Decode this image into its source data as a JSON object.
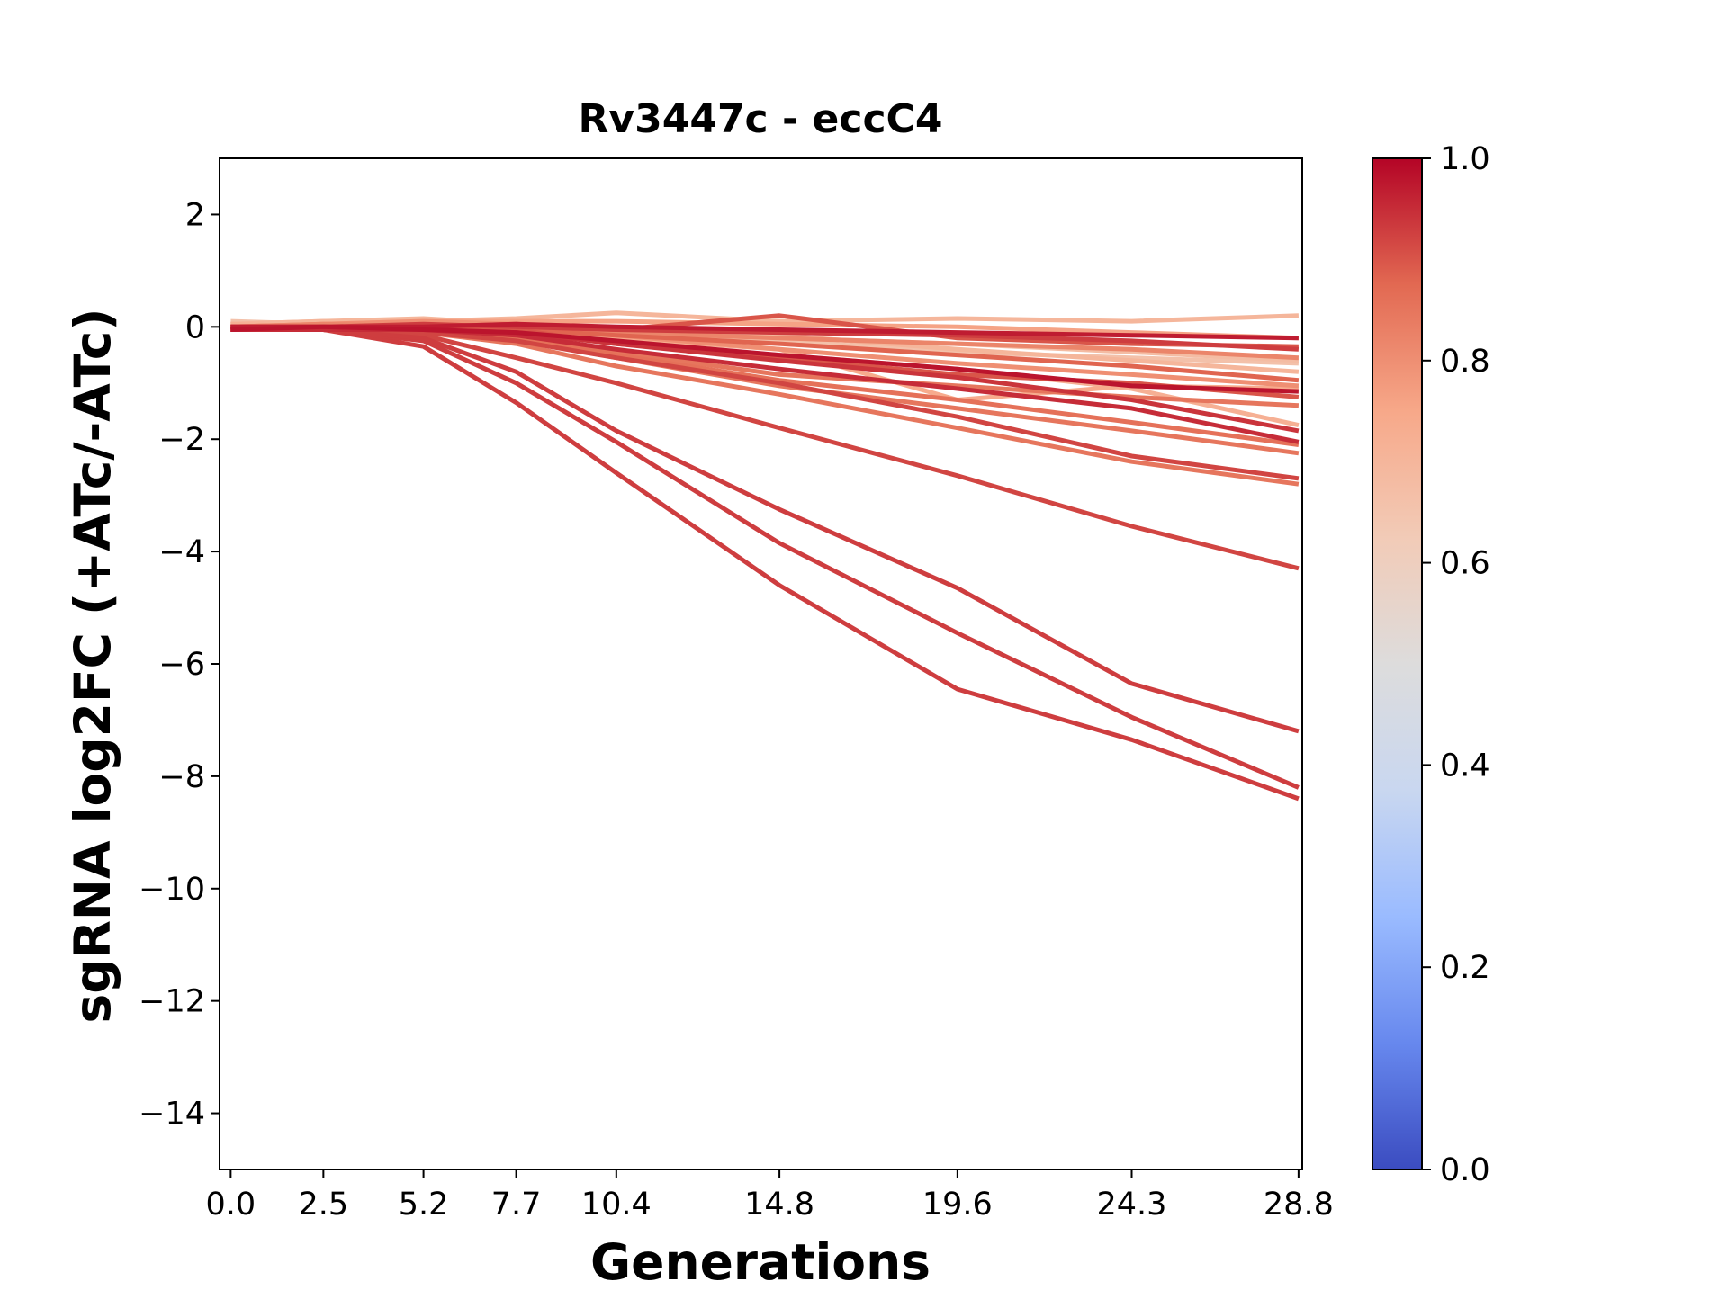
{
  "chart_data": {
    "type": "line",
    "title": "Rv3447c - eccC4",
    "xlabel": "Generations",
    "ylabel": "sgRNA log2FC (+ATc/-ATc)",
    "x": [
      0.0,
      2.5,
      5.2,
      7.7,
      10.4,
      14.8,
      19.6,
      24.3,
      28.8
    ],
    "x_tick_labels": [
      "0.0",
      "2.5",
      "5.2",
      "7.7",
      "10.4",
      "14.8",
      "19.6",
      "24.3",
      "28.8"
    ],
    "xlim": [
      -0.3,
      28.9
    ],
    "ylim": [
      -15,
      3
    ],
    "y_ticks": [
      2,
      0,
      -2,
      -4,
      -6,
      -8,
      -10,
      -12,
      -14
    ],
    "y_tick_labels": [
      "2",
      "0",
      "−2",
      "−4",
      "−6",
      "−8",
      "−10",
      "−12",
      "−14"
    ],
    "grid": false,
    "legend": "none",
    "colorbar": {
      "colormap": "coolwarm",
      "range": [
        0.0,
        1.0
      ],
      "ticks": [
        0.0,
        0.2,
        0.4,
        0.6,
        0.8,
        1.0
      ],
      "tick_labels": [
        "0.0",
        "0.2",
        "0.4",
        "0.6",
        "0.8",
        "1.0"
      ],
      "stops": [
        "#3b4cc0",
        "#6788ee",
        "#9abbff",
        "#c9d7f0",
        "#dddcdc",
        "#f2cbb7",
        "#f7a889",
        "#e26952",
        "#b40426"
      ]
    },
    "series": [
      {
        "c": 0.93,
        "values": [
          -0.05,
          -0.05,
          -0.35,
          -1.35,
          -2.6,
          -4.6,
          -6.45,
          -7.35,
          -8.4
        ]
      },
      {
        "c": 0.93,
        "values": [
          -0.05,
          -0.05,
          -0.25,
          -1.0,
          -2.05,
          -3.85,
          -5.45,
          -6.95,
          -8.2
        ]
      },
      {
        "c": 0.93,
        "values": [
          -0.05,
          -0.05,
          -0.2,
          -0.8,
          -1.85,
          -3.25,
          -4.65,
          -6.35,
          -7.2
        ]
      },
      {
        "c": 0.92,
        "values": [
          -0.05,
          -0.05,
          -0.15,
          -0.55,
          -1.0,
          -1.8,
          -2.65,
          -3.55,
          -4.3
        ]
      },
      {
        "c": 0.85,
        "values": [
          -0.05,
          0.0,
          -0.1,
          -0.3,
          -0.7,
          -1.2,
          -1.8,
          -2.4,
          -2.8
        ]
      },
      {
        "c": 0.92,
        "values": [
          -0.05,
          -0.05,
          -0.1,
          -0.25,
          -0.55,
          -1.0,
          -1.6,
          -2.3,
          -2.7
        ]
      },
      {
        "c": 0.85,
        "values": [
          -0.05,
          -0.05,
          -0.1,
          -0.2,
          -0.55,
          -1.05,
          -1.45,
          -1.85,
          -2.25
        ]
      },
      {
        "c": 0.86,
        "values": [
          -0.05,
          -0.05,
          -0.1,
          -0.2,
          -0.5,
          -0.95,
          -1.3,
          -1.7,
          -2.1
        ]
      },
      {
        "c": 0.95,
        "values": [
          -0.05,
          -0.05,
          -0.05,
          -0.15,
          -0.4,
          -0.75,
          -1.1,
          -1.45,
          -2.05
        ]
      },
      {
        "c": 0.94,
        "values": [
          0.0,
          0.0,
          -0.05,
          -0.1,
          -0.3,
          -0.6,
          -0.9,
          -1.3,
          -1.85
        ]
      },
      {
        "c": 0.72,
        "values": [
          0.05,
          0.0,
          0.0,
          -0.1,
          -0.3,
          -0.5,
          -0.75,
          -1.1,
          -1.75
        ]
      },
      {
        "c": 0.85,
        "values": [
          0.0,
          0.0,
          -0.05,
          -0.1,
          -0.45,
          -0.85,
          -1.05,
          -1.25,
          -1.4
        ]
      },
      {
        "c": 0.9,
        "values": [
          0.0,
          0.0,
          0.0,
          -0.05,
          -0.3,
          -0.55,
          -0.85,
          -1.0,
          -1.25
        ]
      },
      {
        "c": 0.98,
        "values": [
          -0.05,
          0.0,
          -0.05,
          -0.1,
          -0.25,
          -0.5,
          -0.75,
          -1.05,
          -1.15
        ]
      },
      {
        "c": 0.74,
        "values": [
          0.0,
          0.0,
          0.05,
          0.0,
          -0.2,
          -0.4,
          -1.3,
          -1.05,
          -1.1
        ]
      },
      {
        "c": 0.8,
        "values": [
          0.0,
          0.05,
          0.1,
          0.05,
          -0.15,
          -0.4,
          -0.65,
          -0.85,
          -1.05
        ]
      },
      {
        "c": 0.88,
        "values": [
          0.0,
          0.0,
          0.0,
          -0.05,
          -0.15,
          -0.3,
          -0.5,
          -0.7,
          -0.95
        ]
      },
      {
        "c": 0.7,
        "values": [
          0.05,
          0.1,
          0.15,
          0.05,
          -0.05,
          -0.15,
          -0.4,
          -0.6,
          -0.8
        ]
      },
      {
        "c": 0.66,
        "values": [
          0.1,
          0.05,
          0.05,
          0.0,
          -0.05,
          -0.25,
          -0.45,
          -0.55,
          -0.65
        ]
      },
      {
        "c": 0.82,
        "values": [
          0.0,
          0.05,
          0.0,
          0.0,
          -0.1,
          -0.2,
          -0.3,
          -0.4,
          -0.55
        ]
      },
      {
        "c": 0.9,
        "values": [
          0.0,
          0.0,
          0.0,
          0.05,
          -0.05,
          0.2,
          -0.2,
          -0.3,
          -0.35
        ]
      },
      {
        "c": 0.97,
        "values": [
          0.0,
          0.0,
          0.0,
          0.05,
          0.0,
          -0.05,
          -0.1,
          -0.15,
          -0.2
        ]
      },
      {
        "c": 0.93,
        "values": [
          0.0,
          0.0,
          0.05,
          0.0,
          -0.05,
          -0.1,
          -0.15,
          -0.25,
          -0.4
        ]
      },
      {
        "c": 0.7,
        "values": [
          0.05,
          0.1,
          0.1,
          0.15,
          0.25,
          0.1,
          0.15,
          0.1,
          0.2
        ]
      },
      {
        "c": 0.76,
        "values": [
          0.0,
          0.05,
          0.1,
          0.1,
          0.1,
          0.05,
          0.0,
          -0.1,
          -0.2
        ]
      },
      {
        "c": 0.68,
        "values": [
          0.0,
          0.0,
          0.0,
          -0.05,
          -0.1,
          -0.2,
          -0.3,
          -0.45,
          -0.6
        ]
      }
    ]
  }
}
